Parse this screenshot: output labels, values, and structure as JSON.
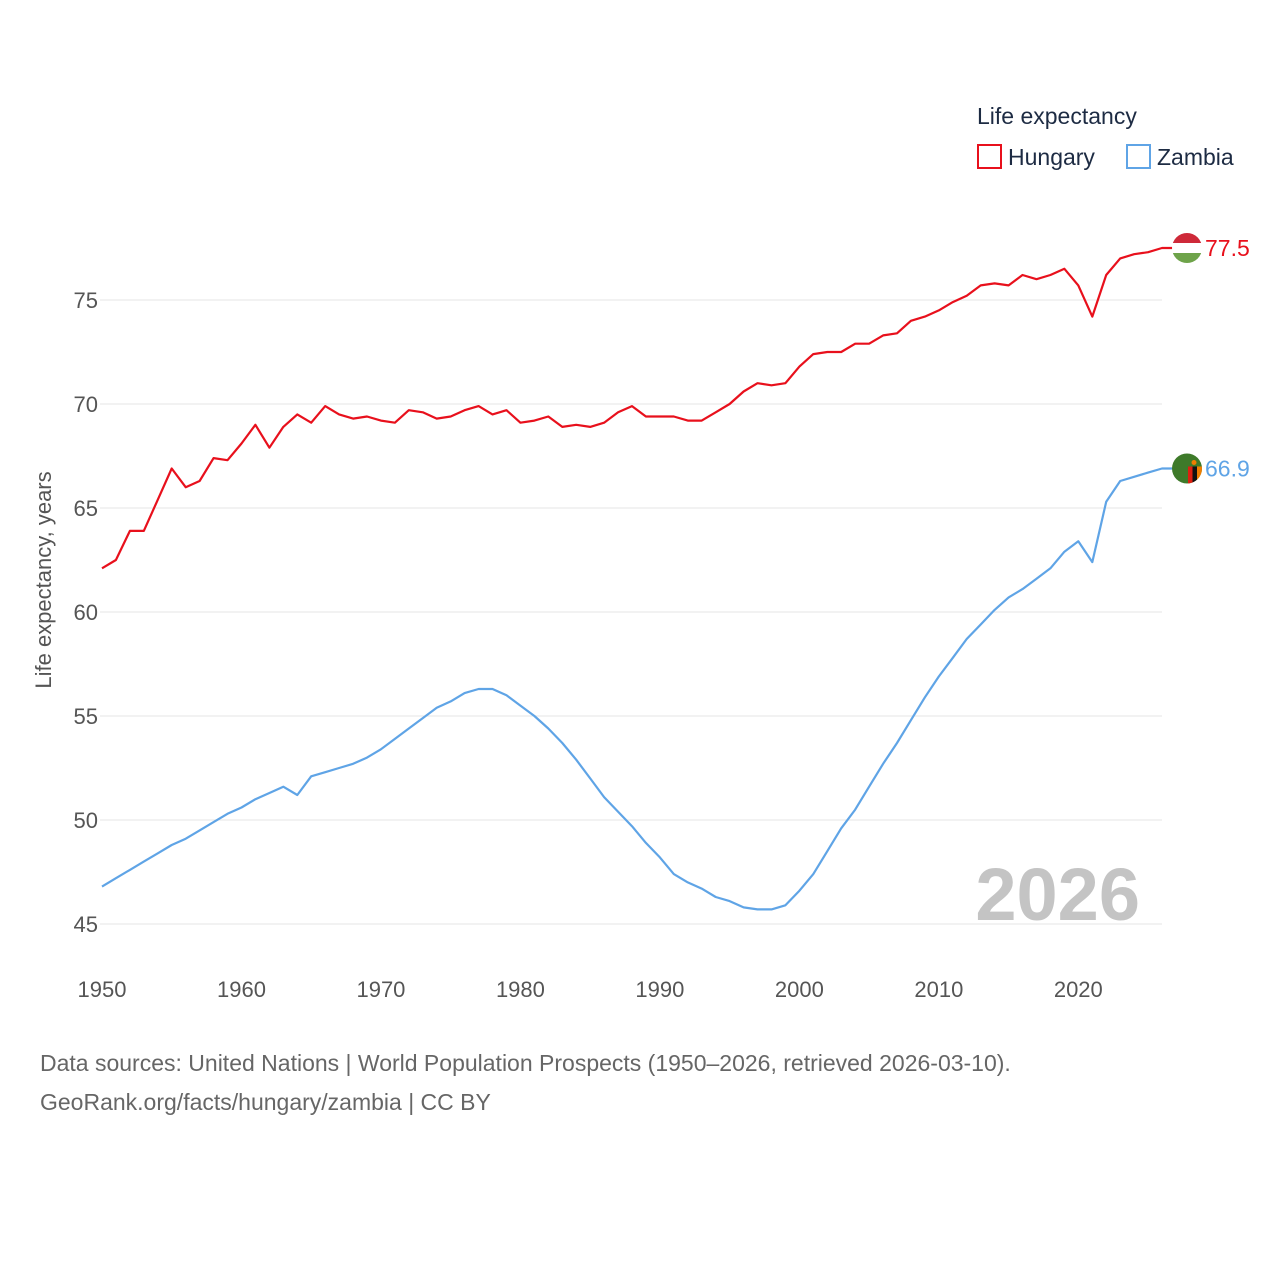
{
  "colors": {
    "hungary": "#e8101c",
    "zambia": "#5fa4e6",
    "grid": "#e6e6e6",
    "text": "#555555",
    "year": "#c4c4c4"
  },
  "legend": {
    "title": "Life expectancy",
    "items": [
      "Hungary",
      "Zambia"
    ]
  },
  "year_display": "2026",
  "end_labels": {
    "hungary": "77.5",
    "zambia": "66.9"
  },
  "footer": {
    "line1": "Data sources: United Nations | World Population Prospects (1950–2026, retrieved 2026-03-10).",
    "line2": "GeoRank.org/facts/hungary/zambia | CC BY"
  },
  "chart_data": {
    "type": "line",
    "title": "Life expectancy",
    "xlabel": "",
    "ylabel": "Life expectancy, years",
    "xlim": [
      1950,
      2026
    ],
    "ylim": [
      45,
      78
    ],
    "x_ticks": [
      1950,
      1960,
      1970,
      1980,
      1990,
      2000,
      2010,
      2020
    ],
    "y_ticks": [
      45,
      50,
      55,
      60,
      65,
      70,
      75
    ],
    "x": [
      1950,
      1951,
      1952,
      1953,
      1954,
      1955,
      1956,
      1957,
      1958,
      1959,
      1960,
      1961,
      1962,
      1963,
      1964,
      1965,
      1966,
      1967,
      1968,
      1969,
      1970,
      1971,
      1972,
      1973,
      1974,
      1975,
      1976,
      1977,
      1978,
      1979,
      1980,
      1981,
      1982,
      1983,
      1984,
      1985,
      1986,
      1987,
      1988,
      1989,
      1990,
      1991,
      1992,
      1993,
      1994,
      1995,
      1996,
      1997,
      1998,
      1999,
      2000,
      2001,
      2002,
      2003,
      2004,
      2005,
      2006,
      2007,
      2008,
      2009,
      2010,
      2011,
      2012,
      2013,
      2014,
      2015,
      2016,
      2017,
      2018,
      2019,
      2020,
      2021,
      2022,
      2023,
      2024,
      2025,
      2026
    ],
    "series": [
      {
        "name": "Hungary",
        "values": [
          62.1,
          62.5,
          63.9,
          63.9,
          65.4,
          66.9,
          66.0,
          66.3,
          67.4,
          67.3,
          68.1,
          69.0,
          67.9,
          68.9,
          69.5,
          69.1,
          69.9,
          69.5,
          69.3,
          69.4,
          69.2,
          69.1,
          69.7,
          69.6,
          69.3,
          69.4,
          69.7,
          69.9,
          69.5,
          69.7,
          69.1,
          69.2,
          69.4,
          68.9,
          69.0,
          68.9,
          69.1,
          69.6,
          69.9,
          69.4,
          69.4,
          69.4,
          69.2,
          69.2,
          69.6,
          70.0,
          70.6,
          71.0,
          70.9,
          71.0,
          71.8,
          72.4,
          72.5,
          72.5,
          72.9,
          72.9,
          73.3,
          73.4,
          74.0,
          74.2,
          74.5,
          74.9,
          75.2,
          75.7,
          75.8,
          75.7,
          76.2,
          76.0,
          76.2,
          76.5,
          75.7,
          74.2,
          76.2,
          77.0,
          77.2,
          77.3,
          77.5
        ]
      },
      {
        "name": "Zambia",
        "values": [
          46.8,
          47.2,
          47.6,
          48.0,
          48.4,
          48.8,
          49.1,
          49.5,
          49.9,
          50.3,
          50.6,
          51.0,
          51.3,
          51.6,
          51.2,
          52.1,
          52.3,
          52.5,
          52.7,
          53.0,
          53.4,
          53.9,
          54.4,
          54.9,
          55.4,
          55.7,
          56.1,
          56.3,
          56.3,
          56.0,
          55.5,
          55.0,
          54.4,
          53.7,
          52.9,
          52.0,
          51.1,
          50.4,
          49.7,
          48.9,
          48.2,
          47.4,
          47.0,
          46.7,
          46.3,
          46.1,
          45.8,
          45.7,
          45.7,
          45.9,
          46.6,
          47.4,
          48.5,
          49.6,
          50.5,
          51.6,
          52.7,
          53.7,
          54.8,
          55.9,
          56.9,
          57.8,
          58.7,
          59.4,
          60.1,
          60.7,
          61.1,
          61.6,
          62.1,
          62.9,
          63.4,
          62.4,
          65.3,
          66.3,
          66.5,
          66.7,
          66.9
        ]
      }
    ],
    "legend_position": "top-right"
  }
}
